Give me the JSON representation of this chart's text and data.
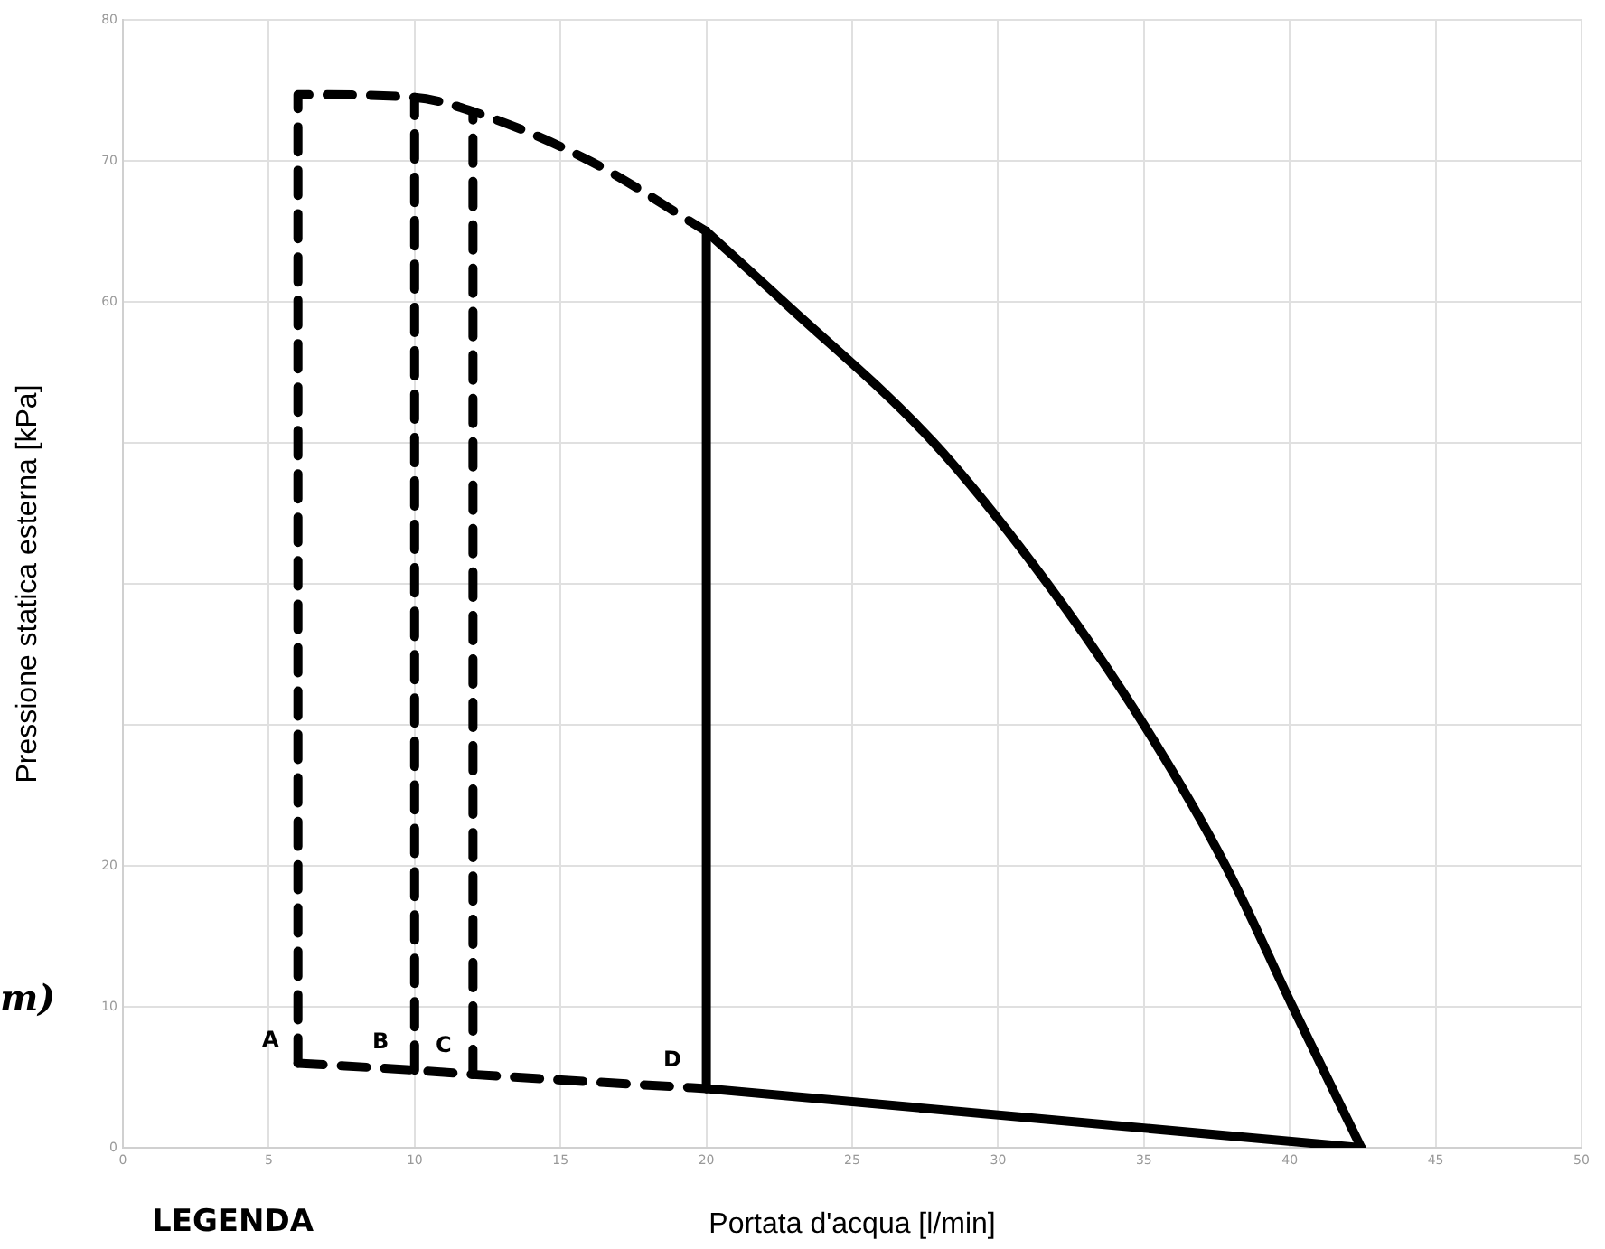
{
  "chart_data": {
    "type": "line",
    "xlabel": "Portata d'acqua [l/min]",
    "ylabel": "Pressione statica esterna [kPa]",
    "xlim": [
      0,
      50
    ],
    "xticks": [
      0,
      5,
      10,
      15,
      20,
      25,
      30,
      35,
      40,
      45,
      50
    ],
    "ylim": [
      0,
      80
    ],
    "yticks": [
      0,
      10,
      20,
      {
        "value": 30,
        "label": null
      },
      {
        "value": 40,
        "label": null
      },
      {
        "value": 50,
        "label": null
      },
      60,
      70,
      80
    ],
    "grid": true,
    "legend": false,
    "marker": "none",
    "series": [
      {
        "color": "#000000",
        "line_style": "dashed",
        "x": [
          6,
          6,
          10,
          12,
          16,
          20
        ],
        "values": [
          6,
          74.7,
          74.5,
          73.5,
          70,
          65
        ]
      },
      {
        "color": "#000000",
        "line_style": "dashed",
        "x": [
          10,
          10
        ],
        "values": [
          5.5,
          74.5
        ]
      },
      {
        "color": "#000000",
        "line_style": "dashed",
        "x": [
          12,
          12
        ],
        "values": [
          5.2,
          73.5
        ]
      },
      {
        "color": "#000000",
        "line_style": "dashed",
        "x": [
          6,
          10,
          12,
          20
        ],
        "values": [
          6,
          5.5,
          5.2,
          4.2
        ]
      },
      {
        "color": "#000000",
        "line_style": "solid",
        "x": [
          20,
          20
        ],
        "values": [
          4.2,
          65
        ]
      },
      {
        "color": "#000000",
        "line_style": "solid",
        "x": [
          20,
          22.65,
          27.8,
          31.7,
          35,
          37.8,
          40.1,
          42.45
        ],
        "values": [
          65,
          60,
          50,
          40,
          30,
          20,
          10,
          0
        ]
      },
      {
        "color": "#000000",
        "line_style": "solid",
        "x": [
          20,
          42.45
        ],
        "values": [
          4.2,
          0
        ]
      }
    ],
    "annotations": [
      "A",
      "B",
      "C",
      "D",
      "m)",
      "LEGENDA"
    ]
  }
}
